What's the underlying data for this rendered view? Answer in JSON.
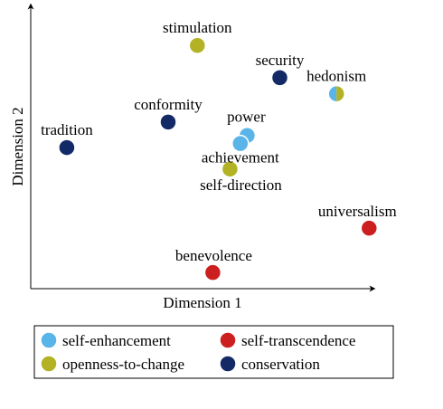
{
  "chart_data": {
    "type": "scatter",
    "title": "",
    "xlabel": "Dimension 1",
    "ylabel": "Dimension 2",
    "xlim": [
      0,
      100
    ],
    "ylim": [
      0,
      100
    ],
    "grid": false,
    "legend": "bottom",
    "categories": [
      {
        "key": "self-enhancement",
        "label": "self-enhancement",
        "color": "#59b4e8"
      },
      {
        "key": "self-transcendence",
        "label": "self-transcendence",
        "color": "#cc2020"
      },
      {
        "key": "openness-to-change",
        "label": "openness-to-change",
        "color": "#b2b224"
      },
      {
        "key": "conservation",
        "label": "conservation",
        "color": "#142a66"
      }
    ],
    "points": [
      {
        "label": "stimulation",
        "x": 48.5,
        "y": 90.5,
        "categories": [
          "openness-to-change"
        ]
      },
      {
        "label": "security",
        "x": 72.5,
        "y": 78.5,
        "categories": [
          "conservation"
        ]
      },
      {
        "label": "hedonism",
        "x": 89,
        "y": 72.5,
        "categories": [
          "self-enhancement",
          "openness-to-change"
        ]
      },
      {
        "label": "conformity",
        "x": 40,
        "y": 62,
        "categories": [
          "conservation"
        ]
      },
      {
        "label": "tradition",
        "x": 10.5,
        "y": 52.5,
        "categories": [
          "conservation"
        ]
      },
      {
        "label": "power",
        "x": 63,
        "y": 57,
        "categories": [
          "self-enhancement"
        ]
      },
      {
        "label": "achievement",
        "x": 61,
        "y": 54,
        "categories": [
          "self-enhancement"
        ]
      },
      {
        "label": "self-direction",
        "x": 58,
        "y": 44.5,
        "categories": [
          "openness-to-change"
        ]
      },
      {
        "label": "universalism",
        "x": 98.5,
        "y": 22.5,
        "categories": [
          "self-transcendence"
        ]
      },
      {
        "label": "benevolence",
        "x": 53,
        "y": 6,
        "categories": [
          "self-transcendence"
        ]
      }
    ]
  }
}
